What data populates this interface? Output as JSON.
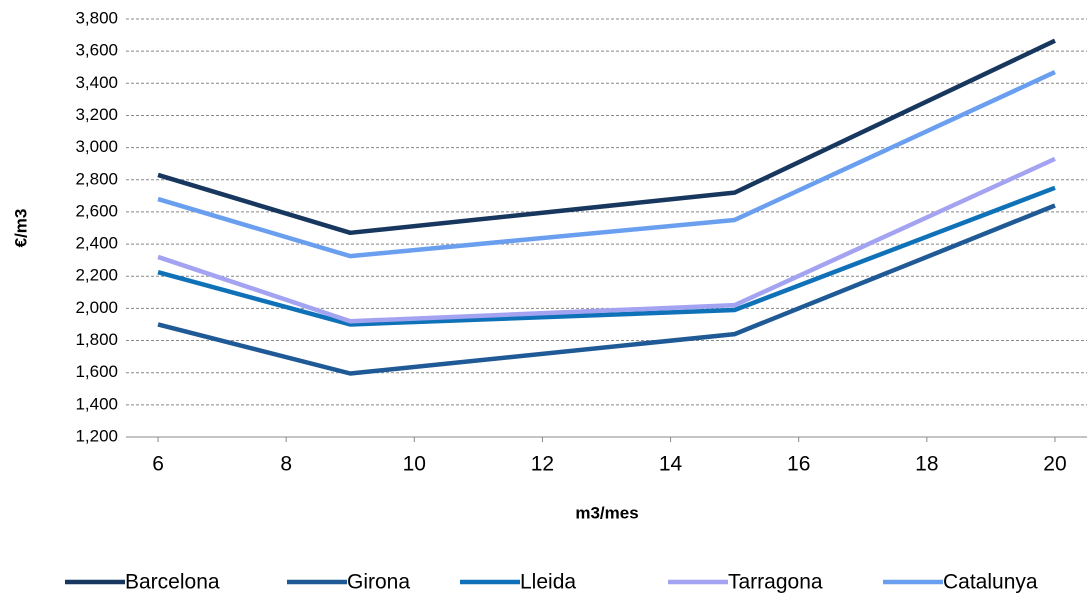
{
  "chart_data": {
    "type": "line",
    "x_label": "m3/mes",
    "y_label": "€/m3",
    "x": [
      6,
      9,
      15,
      20
    ],
    "series": [
      {
        "name": "Barcelona",
        "color": "#17375e",
        "values": [
          2830,
          2470,
          2720,
          3665
        ]
      },
      {
        "name": "Girona",
        "color": "#1f5a96",
        "values": [
          1900,
          1595,
          1840,
          2640
        ]
      },
      {
        "name": "Lleida",
        "color": "#0f72b8",
        "values": [
          2225,
          1900,
          1990,
          2750
        ]
      },
      {
        "name": "Tarragona",
        "color": "#a3a3f2",
        "values": [
          2320,
          1920,
          2020,
          2930
        ]
      },
      {
        "name": "Catalunya",
        "color": "#6a9ff0",
        "values": [
          2680,
          2325,
          2550,
          3470
        ]
      }
    ],
    "xlim": [
      5.5,
      20.5
    ],
    "xticks": [
      6,
      8,
      10,
      12,
      14,
      16,
      18,
      20
    ],
    "ylim": [
      1200,
      3800
    ],
    "yticks": [
      {
        "value": 1200,
        "label": "1,200"
      },
      {
        "value": 1400,
        "label": "1,400"
      },
      {
        "value": 1600,
        "label": "1,600"
      },
      {
        "value": 1800,
        "label": "1,800"
      },
      {
        "value": 2000,
        "label": "2,000"
      },
      {
        "value": 2200,
        "label": "2,200"
      },
      {
        "value": 2400,
        "label": "2,400"
      },
      {
        "value": 2600,
        "label": "2,600"
      },
      {
        "value": 2800,
        "label": "2,800"
      },
      {
        "value": 3000,
        "label": "3,000"
      },
      {
        "value": 3200,
        "label": "3,200"
      },
      {
        "value": 3400,
        "label": "3,400"
      },
      {
        "value": 3600,
        "label": "3,600"
      },
      {
        "value": 3800,
        "label": "3,800"
      }
    ],
    "grid": true,
    "legend": "bottom"
  }
}
